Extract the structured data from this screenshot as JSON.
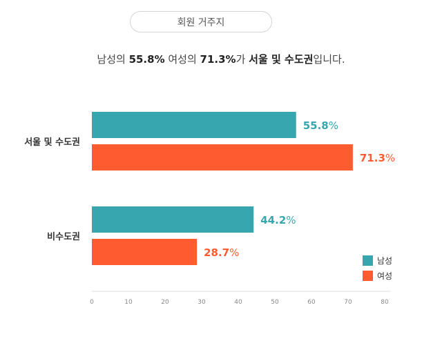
{
  "header": {
    "title": "회원 거주지"
  },
  "summary": {
    "p1": "남성의 ",
    "v1": "55.8%",
    "p2": " 여성의 ",
    "v2": "71.3%",
    "p3": "가 ",
    "region": "서울 및 수도권",
    "p4": "입니다."
  },
  "colors": {
    "male": "#38a6ae",
    "female": "#ff5b30"
  },
  "legend": {
    "male": "남성",
    "female": "여성"
  },
  "chart_data": {
    "type": "bar",
    "orientation": "horizontal",
    "categories": [
      "서울 및 수도권",
      "비수도권"
    ],
    "series": [
      {
        "name": "남성",
        "values": [
          55.8,
          44.2
        ]
      },
      {
        "name": "여성",
        "values": [
          71.3,
          28.7
        ]
      }
    ],
    "xlim": [
      0,
      80
    ],
    "xticks": [
      0,
      10,
      20,
      30,
      40,
      50,
      60,
      70,
      80
    ],
    "value_suffix": "%",
    "legend_position": "bottom-right",
    "grid": false
  }
}
